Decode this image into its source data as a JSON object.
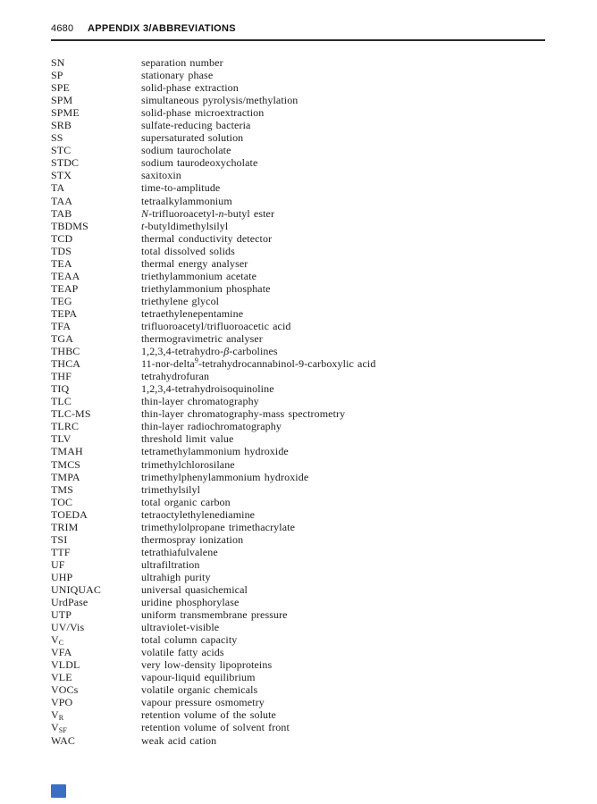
{
  "header": {
    "page_number": "4680",
    "title": "APPENDIX 3/ABBREVIATIONS"
  },
  "footer": {
    "marker_color": "#3a6fc4"
  },
  "list": {
    "rows": [
      {
        "abbr": "SN",
        "def": "separation number"
      },
      {
        "abbr": "SP",
        "def": "stationary phase"
      },
      {
        "abbr": "SPE",
        "def": "solid-phase extraction"
      },
      {
        "abbr": "SPM",
        "def": "simultaneous pyrolysis/methylation"
      },
      {
        "abbr": "SPME",
        "def": "solid-phase microextraction"
      },
      {
        "abbr": "SRB",
        "def": "sulfate-reducing bacteria"
      },
      {
        "abbr": "SS",
        "def": "supersaturated solution"
      },
      {
        "abbr": "STC",
        "def": "sodium taurocholate"
      },
      {
        "abbr": "STDC",
        "def": "sodium taurodeoxycholate"
      },
      {
        "abbr": "STX",
        "def": "saxitoxin"
      },
      {
        "abbr": "TA",
        "def": "time-to-amplitude"
      },
      {
        "abbr": "TAA",
        "def": "tetraalkylammonium"
      },
      {
        "abbr": "TAB",
        "def": [
          {
            "t": "N",
            "s": "i"
          },
          "-trifluoroacetyl-",
          {
            "t": "n",
            "s": "i"
          },
          "-butyl ester"
        ]
      },
      {
        "abbr": "TBDMS",
        "def": [
          {
            "t": "t",
            "s": "i"
          },
          "-butyldimethylsilyl"
        ]
      },
      {
        "abbr": "TCD",
        "def": "thermal conductivity detector"
      },
      {
        "abbr": "TDS",
        "def": "total dissolved solids"
      },
      {
        "abbr": "TEA",
        "def": "thermal energy analyser"
      },
      {
        "abbr": "TEAA",
        "def": "triethylammonium acetate"
      },
      {
        "abbr": "TEAP",
        "def": "triethylammonium phosphate"
      },
      {
        "abbr": "TEG",
        "def": "triethylene glycol"
      },
      {
        "abbr": "TEPA",
        "def": "tetraethylenepentamine"
      },
      {
        "abbr": "TFA",
        "def": "trifluoroacetyl/trifluoroacetic acid"
      },
      {
        "abbr": "TGA",
        "def": "thermogravimetric analyser"
      },
      {
        "abbr": "THBC",
        "def": [
          "1,2,3,4-tetrahydro-",
          {
            "t": "β",
            "s": "i"
          },
          "-carbolines"
        ]
      },
      {
        "abbr": "THCA",
        "def": [
          "11-nor-delta",
          {
            "t": "9",
            "s": "sup"
          },
          "-tetrahydrocannabinol-9-carboxylic acid"
        ]
      },
      {
        "abbr": "THF",
        "def": "tetrahydrofuran"
      },
      {
        "abbr": "TIQ",
        "def": "1,2,3,4-tetrahydroisoquinoline"
      },
      {
        "abbr": "TLC",
        "def": "thin-layer chromatography"
      },
      {
        "abbr": "TLC-MS",
        "def": "thin-layer chromatography-mass spectrometry"
      },
      {
        "abbr": "TLRC",
        "def": "thin-layer radiochromatography"
      },
      {
        "abbr": "TLV",
        "def": "threshold limit value"
      },
      {
        "abbr": "TMAH",
        "def": "tetramethylammonium hydroxide"
      },
      {
        "abbr": "TMCS",
        "def": "trimethylchlorosilane"
      },
      {
        "abbr": "TMPA",
        "def": "trimethylphenylammonium hydroxide"
      },
      {
        "abbr": "TMS",
        "def": "trimethylsilyl"
      },
      {
        "abbr": "TOC",
        "def": "total organic carbon"
      },
      {
        "abbr": "TOEDA",
        "def": "tetraoctylethylenediamine"
      },
      {
        "abbr": "TRIM",
        "def": "trimethylolpropane trimethacrylate"
      },
      {
        "abbr": "TSI",
        "def": "thermospray ionization"
      },
      {
        "abbr": "TTF",
        "def": "tetrathiafulvalene"
      },
      {
        "abbr": "UF",
        "def": "ultrafiltration"
      },
      {
        "abbr": "UHP",
        "def": "ultrahigh purity"
      },
      {
        "abbr": "UNIQUAC",
        "def": "universal quasichemical"
      },
      {
        "abbr": "UrdPase",
        "def": "uridine phosphorylase"
      },
      {
        "abbr": "UTP",
        "def": "uniform transmembrane pressure"
      },
      {
        "abbr": "UV/Vis",
        "def": "ultraviolet-visible"
      },
      {
        "abbr": [
          "V",
          {
            "t": "C",
            "s": "sub"
          }
        ],
        "def": "total column capacity"
      },
      {
        "abbr": "VFA",
        "def": "volatile fatty acids"
      },
      {
        "abbr": "VLDL",
        "def": "very low-density lipoproteins"
      },
      {
        "abbr": "VLE",
        "def": "vapour-liquid equilibrium"
      },
      {
        "abbr": "VOCs",
        "def": "volatile organic chemicals"
      },
      {
        "abbr": "VPO",
        "def": "vapour pressure osmometry"
      },
      {
        "abbr": [
          "V",
          {
            "t": "R",
            "s": "sub"
          }
        ],
        "def": "retention volume of the solute"
      },
      {
        "abbr": [
          "V",
          {
            "t": "SF",
            "s": "sub"
          }
        ],
        "def": "retention volume of solvent front"
      },
      {
        "abbr": "WAC",
        "def": "weak acid cation"
      }
    ]
  }
}
